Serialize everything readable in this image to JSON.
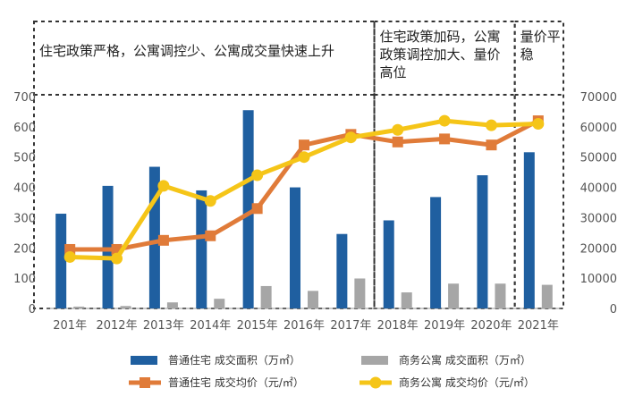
{
  "chart_data": {
    "type": "bar+line",
    "categories": [
      "201年",
      "2012年",
      "2013年",
      "2014年",
      "2015年",
      "2016年",
      "2017年",
      "2018年",
      "2019年",
      "2020年",
      "2021年"
    ],
    "series": [
      {
        "name": "普通住宅 成交面积（万㎡）",
        "kind": "bar",
        "axis": "left",
        "color": "#1f5fa0",
        "values": [
          313,
          405,
          468,
          390,
          655,
          400,
          246,
          291,
          368,
          440,
          516
        ]
      },
      {
        "name": "商务公寓 成交面积（万㎡）",
        "kind": "bar",
        "axis": "left",
        "color": "#a6a6a6",
        "values": [
          6,
          8,
          20,
          32,
          74,
          58,
          99,
          53,
          82,
          82,
          78
        ]
      },
      {
        "name": "普通住宅 成交均价（元/㎡）",
        "kind": "line",
        "axis": "right",
        "color": "#e07b39",
        "values": [
          19500,
          19500,
          22500,
          24000,
          33000,
          54000,
          57500,
          55000,
          56000,
          54000,
          62000
        ]
      },
      {
        "name": "商务公寓 成交均价（元/㎡）",
        "kind": "line",
        "axis": "right",
        "color": "#f5c518",
        "values": [
          17000,
          16500,
          40500,
          35500,
          44000,
          50000,
          56500,
          59000,
          62000,
          60500,
          61000
        ]
      }
    ],
    "y_left": {
      "min": 0,
      "max": 700,
      "ticks": [
        0,
        100,
        200,
        300,
        400,
        500,
        600,
        700
      ]
    },
    "y_right": {
      "min": 0,
      "max": 70000,
      "ticks": [
        0,
        10000,
        20000,
        30000,
        40000,
        50000,
        60000,
        70000
      ]
    },
    "periods": [
      {
        "text": "住宅政策严格，公寓调控少、公寓成交量快速上升",
        "from": 0,
        "to": 6
      },
      {
        "text": "住宅政策加码，公寓政策调控加大、量价高位",
        "from": 7,
        "to": 9
      },
      {
        "text": "量价平稳",
        "from": 10,
        "to": 10
      }
    ],
    "legend_position": "bottom",
    "grid": false
  }
}
